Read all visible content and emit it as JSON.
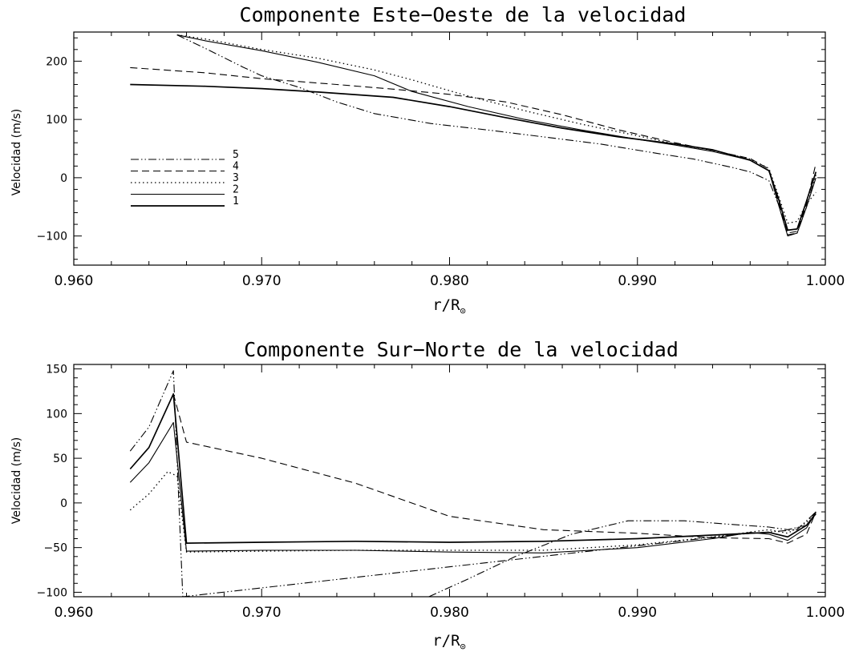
{
  "chart_data": [
    {
      "type": "line",
      "title": "Componente Este−Oeste de la velocidad",
      "xlabel": "r/R",
      "xlabel_sub": "⊙",
      "ylabel": "Velocidad (m/s)",
      "xlim": [
        0.96,
        1.0
      ],
      "ylim": [
        -150,
        250
      ],
      "xticks": [
        0.96,
        0.97,
        0.98,
        0.99,
        1.0
      ],
      "xticklabels": [
        "0.960",
        "0.970",
        "0.980",
        "0.990",
        "1.000"
      ],
      "yticks": [
        -100,
        0,
        100,
        200
      ],
      "yticklabels": [
        "−100",
        "0",
        "100",
        "200"
      ],
      "legend_position": "left",
      "series": [
        {
          "name": "1",
          "style": "solid",
          "width": 1.7,
          "x": [
            0.963,
            0.967,
            0.97,
            0.973,
            0.977,
            0.98,
            0.983,
            0.986,
            0.989,
            0.992,
            0.994,
            0.996,
            0.997,
            0.9975,
            0.998,
            0.9985,
            0.999,
            0.9995
          ],
          "y": [
            160,
            157,
            153,
            147,
            138,
            122,
            103,
            85,
            70,
            58,
            48,
            30,
            12,
            -35,
            -90,
            -88,
            -40,
            10
          ]
        },
        {
          "name": "2",
          "style": "solid",
          "width": 1.1,
          "x": [
            0.9655,
            0.967,
            0.97,
            0.973,
            0.976,
            0.978,
            0.981,
            0.984,
            0.987,
            0.99,
            0.992,
            0.994,
            0.996,
            0.997,
            0.9975,
            0.998,
            0.9985,
            0.999,
            0.9995
          ],
          "y": [
            245,
            235,
            218,
            198,
            175,
            148,
            122,
            100,
            82,
            66,
            56,
            45,
            30,
            12,
            -45,
            -100,
            -95,
            -50,
            0
          ]
        },
        {
          "name": "3",
          "style": "dotted",
          "width": 1.3,
          "x": [
            0.9655,
            0.967,
            0.97,
            0.973,
            0.976,
            0.978,
            0.981,
            0.984,
            0.987,
            0.99,
            0.992,
            0.994,
            0.996,
            0.997,
            0.9975,
            0.998,
            0.9985,
            0.999,
            0.9995
          ],
          "y": [
            245,
            238,
            220,
            205,
            185,
            168,
            140,
            115,
            92,
            72,
            58,
            47,
            32,
            16,
            -30,
            -78,
            -75,
            -45,
            -25
          ]
        },
        {
          "name": "4",
          "style": "dashed",
          "width": 1.1,
          "x": [
            0.963,
            0.967,
            0.97,
            0.974,
            0.977,
            0.98,
            0.983,
            0.986,
            0.989,
            0.992,
            0.994,
            0.996,
            0.997,
            0.9975,
            0.998,
            0.9985,
            0.999,
            0.9995
          ],
          "y": [
            189,
            180,
            170,
            160,
            152,
            143,
            130,
            108,
            82,
            60,
            47,
            33,
            15,
            -40,
            -95,
            -92,
            -45,
            25
          ]
        },
        {
          "name": "5",
          "style": "dashdotdot",
          "width": 1.1,
          "x": [
            0.9655,
            0.967,
            0.969,
            0.97,
            0.972,
            0.974,
            0.976,
            0.979,
            0.982,
            0.985,
            0.988,
            0.991,
            0.993,
            0.995,
            0.996,
            0.997,
            0.9975,
            0.998,
            0.9985,
            0.999,
            0.9995
          ],
          "y": [
            245,
            222,
            190,
            175,
            155,
            130,
            110,
            93,
            82,
            70,
            58,
            42,
            32,
            18,
            10,
            -5,
            -45,
            -98,
            -95,
            -50,
            5
          ]
        }
      ]
    },
    {
      "type": "line",
      "title": "Componente Sur−Norte de la velocidad",
      "xlabel": "r/R",
      "xlabel_sub": "⊙",
      "ylabel": "Velocidad (m/s)",
      "xlim": [
        0.96,
        1.0
      ],
      "ylim": [
        -105,
        155
      ],
      "xticks": [
        0.96,
        0.97,
        0.98,
        0.99,
        1.0
      ],
      "xticklabels": [
        "0.960",
        "0.970",
        "0.980",
        "0.990",
        "1.000"
      ],
      "yticks": [
        -100,
        -50,
        0,
        50,
        100,
        150
      ],
      "yticklabels": [
        "−100",
        "−50",
        "0",
        "50",
        "100",
        "150"
      ],
      "series": [
        {
          "name": "1",
          "style": "solid",
          "width": 1.7,
          "x": [
            0.963,
            0.964,
            0.9653,
            0.966,
            0.97,
            0.975,
            0.98,
            0.985,
            0.99,
            0.994,
            0.997,
            0.998,
            0.999,
            0.9995
          ],
          "y": [
            38,
            62,
            122,
            -45,
            -44,
            -43,
            -44,
            -43,
            -40,
            -36,
            -33,
            -38,
            -25,
            -12
          ]
        },
        {
          "name": "2",
          "style": "solid",
          "width": 1.1,
          "x": [
            0.963,
            0.964,
            0.9653,
            0.966,
            0.97,
            0.975,
            0.98,
            0.985,
            0.99,
            0.994,
            0.996,
            0.997,
            0.998,
            0.999,
            0.9995
          ],
          "y": [
            23,
            45,
            90,
            -54,
            -53,
            -53,
            -55,
            -56,
            -50,
            -40,
            -33,
            -35,
            -42,
            -28,
            -10
          ]
        },
        {
          "name": "3",
          "style": "dotted",
          "width": 1.3,
          "x": [
            0.963,
            0.964,
            0.965,
            0.9655,
            0.966,
            0.97,
            0.975,
            0.98,
            0.985,
            0.99,
            0.994,
            0.997,
            0.998,
            0.999,
            0.9995
          ],
          "y": [
            -8,
            10,
            35,
            30,
            -55,
            -54,
            -53,
            -53,
            -53,
            -47,
            -38,
            -30,
            -34,
            -22,
            -10
          ]
        },
        {
          "name": "4",
          "style": "dashed",
          "width": 1.1,
          "x": [
            0.9653,
            0.966,
            0.97,
            0.975,
            0.98,
            0.985,
            0.99,
            0.994,
            0.997,
            0.998,
            0.999,
            0.9995
          ],
          "y": [
            122,
            68,
            50,
            22,
            -15,
            -30,
            -34,
            -39,
            -40,
            -45,
            -35,
            -10
          ]
        },
        {
          "name": "5",
          "style": "dashdotdot",
          "width": 1.1,
          "x": [
            0.963,
            0.964,
            0.9653,
            0.9658,
            0.9955,
            0.9985,
            0.9995
          ],
          "y": [
            58,
            85,
            148,
            -105,
            -35,
            -30,
            -10
          ]
        }
      ],
      "extra_segments": [
        {
          "style": "dashdotdot",
          "x": [
            0.9789,
            0.981,
            0.9835,
            0.9865,
            0.9895,
            0.9925,
            0.995,
            0.997,
            0.998,
            0.999,
            0.9995
          ],
          "y": [
            -105,
            -85,
            -60,
            -35,
            -20,
            -20,
            -24,
            -27,
            -30,
            -25,
            -10
          ]
        }
      ]
    }
  ]
}
